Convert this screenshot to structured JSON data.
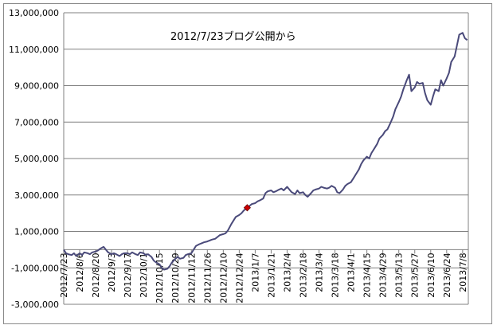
{
  "chart_data": {
    "type": "line",
    "title": "",
    "xlabel": "",
    "ylabel": "",
    "ylim": [
      -3000000,
      13000000
    ],
    "grid": true,
    "legend": "none",
    "y_ticks": [
      "13,000,000",
      "11,000,000",
      "9,000,000",
      "7,000,000",
      "5,000,000",
      "3,000,000",
      "1,000,000",
      "-1,000,000",
      "-3,000,000"
    ],
    "y_tick_values": [
      13000000,
      11000000,
      9000000,
      7000000,
      5000000,
      3000000,
      1000000,
      -1000000,
      -3000000
    ],
    "x_ticks": [
      "2012/7/23",
      "2012/8/6",
      "2012/8/20",
      "2012/9/3",
      "2012/9/17",
      "2012/10/1",
      "2012/10/15",
      "2012/10/29",
      "2012/11/12",
      "2012/11/26",
      "2012/12/10",
      "2012/12/24",
      "2013/1/7",
      "2013/1/21",
      "2013/2/4",
      "2013/2/18",
      "2013/3/4",
      "2013/3/18",
      "2013/4/1",
      "2013/4/15",
      "2013/4/29",
      "2013/5/13",
      "2013/5/27",
      "2013/6/10",
      "2013/6/24",
      "2013/7/8"
    ],
    "x_start": "2012/7/23",
    "x_end": "2013/7/13",
    "annotation": {
      "text": "2012/7/23ブログ公開から"
    },
    "highlight_point": {
      "x": "2012/12/31",
      "y": 2300000,
      "color": "#cc0000"
    },
    "line_color": "#4a4a7a",
    "series": [
      {
        "points": [
          [
            "2012/7/23",
            0
          ],
          [
            "2012/7/25",
            -200000
          ],
          [
            "2012/7/27",
            -250000
          ],
          [
            "2012/7/30",
            -300000
          ],
          [
            "2012/8/1",
            -200000
          ],
          [
            "2012/8/3",
            -350000
          ],
          [
            "2012/8/6",
            -200000
          ],
          [
            "2012/8/8",
            -300000
          ],
          [
            "2012/8/10",
            -150000
          ],
          [
            "2012/8/13",
            -200000
          ],
          [
            "2012/8/15",
            -250000
          ],
          [
            "2012/8/17",
            -150000
          ],
          [
            "2012/8/20",
            -100000
          ],
          [
            "2012/8/22",
            -50000
          ],
          [
            "2012/8/24",
            50000
          ],
          [
            "2012/8/27",
            150000
          ],
          [
            "2012/8/29",
            0
          ],
          [
            "2012/8/31",
            -150000
          ],
          [
            "2012/9/3",
            -250000
          ],
          [
            "2012/9/5",
            -200000
          ],
          [
            "2012/9/7",
            -250000
          ],
          [
            "2012/9/10",
            -350000
          ],
          [
            "2012/9/12",
            -250000
          ],
          [
            "2012/9/14",
            -200000
          ],
          [
            "2012/9/17",
            -200000
          ],
          [
            "2012/9/19",
            -250000
          ],
          [
            "2012/9/21",
            -150000
          ],
          [
            "2012/9/24",
            -250000
          ],
          [
            "2012/9/26",
            -300000
          ],
          [
            "2012/9/28",
            -150000
          ],
          [
            "2012/10/1",
            -200000
          ],
          [
            "2012/10/3",
            -300000
          ],
          [
            "2012/10/5",
            -250000
          ],
          [
            "2012/10/8",
            -400000
          ],
          [
            "2012/10/10",
            -600000
          ],
          [
            "2012/10/12",
            -700000
          ],
          [
            "2012/10/15",
            -800000
          ],
          [
            "2012/10/17",
            -1000000
          ],
          [
            "2012/10/19",
            -1100000
          ],
          [
            "2012/10/22",
            -1050000
          ],
          [
            "2012/10/24",
            -900000
          ],
          [
            "2012/10/26",
            -700000
          ],
          [
            "2012/10/29",
            -500000
          ],
          [
            "2012/10/31",
            -400000
          ],
          [
            "2012/11/2",
            -500000
          ],
          [
            "2012/11/5",
            -450000
          ],
          [
            "2012/11/7",
            -300000
          ],
          [
            "2012/11/9",
            -250000
          ],
          [
            "2012/11/12",
            -200000
          ],
          [
            "2012/11/14",
            0
          ],
          [
            "2012/11/16",
            200000
          ],
          [
            "2012/11/19",
            300000
          ],
          [
            "2012/11/21",
            350000
          ],
          [
            "2012/11/23",
            400000
          ],
          [
            "2012/11/26",
            450000
          ],
          [
            "2012/11/28",
            500000
          ],
          [
            "2012/11/30",
            550000
          ],
          [
            "2012/12/3",
            600000
          ],
          [
            "2012/12/5",
            700000
          ],
          [
            "2012/12/7",
            800000
          ],
          [
            "2012/12/10",
            850000
          ],
          [
            "2012/12/12",
            900000
          ],
          [
            "2012/12/14",
            1050000
          ],
          [
            "2012/12/17",
            1400000
          ],
          [
            "2012/12/19",
            1600000
          ],
          [
            "2012/12/21",
            1800000
          ],
          [
            "2012/12/24",
            1900000
          ],
          [
            "2012/12/26",
            2000000
          ],
          [
            "2012/12/28",
            2150000
          ],
          [
            "2012/12/31",
            2300000
          ],
          [
            "2013/1/2",
            2400000
          ],
          [
            "2013/1/4",
            2500000
          ],
          [
            "2013/1/7",
            2550000
          ],
          [
            "2013/1/9",
            2650000
          ],
          [
            "2013/1/11",
            2700000
          ],
          [
            "2013/1/14",
            2800000
          ],
          [
            "2013/1/16",
            3100000
          ],
          [
            "2013/1/18",
            3200000
          ],
          [
            "2013/1/21",
            3250000
          ],
          [
            "2013/1/23",
            3150000
          ],
          [
            "2013/1/25",
            3200000
          ],
          [
            "2013/1/28",
            3300000
          ],
          [
            "2013/1/30",
            3350000
          ],
          [
            "2013/2/1",
            3250000
          ],
          [
            "2013/2/4",
            3450000
          ],
          [
            "2013/2/6",
            3300000
          ],
          [
            "2013/2/8",
            3150000
          ],
          [
            "2013/2/11",
            3050000
          ],
          [
            "2013/2/13",
            3250000
          ],
          [
            "2013/2/15",
            3100000
          ],
          [
            "2013/2/18",
            3150000
          ],
          [
            "2013/2/20",
            3000000
          ],
          [
            "2013/2/22",
            2900000
          ],
          [
            "2013/2/25",
            3100000
          ],
          [
            "2013/2/27",
            3250000
          ],
          [
            "2013/3/1",
            3300000
          ],
          [
            "2013/3/4",
            3350000
          ],
          [
            "2013/3/6",
            3450000
          ],
          [
            "2013/3/8",
            3400000
          ],
          [
            "2013/3/11",
            3350000
          ],
          [
            "2013/3/13",
            3400000
          ],
          [
            "2013/3/15",
            3500000
          ],
          [
            "2013/3/18",
            3400000
          ],
          [
            "2013/3/20",
            3150000
          ],
          [
            "2013/3/22",
            3100000
          ],
          [
            "2013/3/25",
            3300000
          ],
          [
            "2013/3/27",
            3500000
          ],
          [
            "2013/3/29",
            3600000
          ],
          [
            "2013/4/1",
            3700000
          ],
          [
            "2013/4/3",
            3900000
          ],
          [
            "2013/4/5",
            4100000
          ],
          [
            "2013/4/8",
            4400000
          ],
          [
            "2013/4/10",
            4700000
          ],
          [
            "2013/4/12",
            4900000
          ],
          [
            "2013/4/15",
            5100000
          ],
          [
            "2013/4/17",
            5000000
          ],
          [
            "2013/4/19",
            5300000
          ],
          [
            "2013/4/22",
            5600000
          ],
          [
            "2013/4/24",
            5800000
          ],
          [
            "2013/4/26",
            6100000
          ],
          [
            "2013/4/29",
            6300000
          ],
          [
            "2013/5/1",
            6500000
          ],
          [
            "2013/5/3",
            6600000
          ],
          [
            "2013/5/6",
            7000000
          ],
          [
            "2013/5/8",
            7300000
          ],
          [
            "2013/5/10",
            7700000
          ],
          [
            "2013/5/13",
            8100000
          ],
          [
            "2013/5/15",
            8400000
          ],
          [
            "2013/5/17",
            8800000
          ],
          [
            "2013/5/20",
            9300000
          ],
          [
            "2013/5/22",
            9600000
          ],
          [
            "2013/5/24",
            8700000
          ],
          [
            "2013/5/27",
            8900000
          ],
          [
            "2013/5/29",
            9200000
          ],
          [
            "2013/5/31",
            9100000
          ],
          [
            "2013/6/3",
            9150000
          ],
          [
            "2013/6/5",
            8600000
          ],
          [
            "2013/6/7",
            8200000
          ],
          [
            "2013/6/10",
            7950000
          ],
          [
            "2013/6/12",
            8400000
          ],
          [
            "2013/6/14",
            8800000
          ],
          [
            "2013/6/17",
            8700000
          ],
          [
            "2013/6/19",
            9300000
          ],
          [
            "2013/6/21",
            9000000
          ],
          [
            "2013/6/24",
            9400000
          ],
          [
            "2013/6/26",
            9700000
          ],
          [
            "2013/6/28",
            10300000
          ],
          [
            "2013/7/1",
            10600000
          ],
          [
            "2013/7/3",
            11200000
          ],
          [
            "2013/7/5",
            11800000
          ],
          [
            "2013/7/8",
            11900000
          ],
          [
            "2013/7/10",
            11600000
          ],
          [
            "2013/7/12",
            11500000
          ]
        ]
      }
    ]
  }
}
